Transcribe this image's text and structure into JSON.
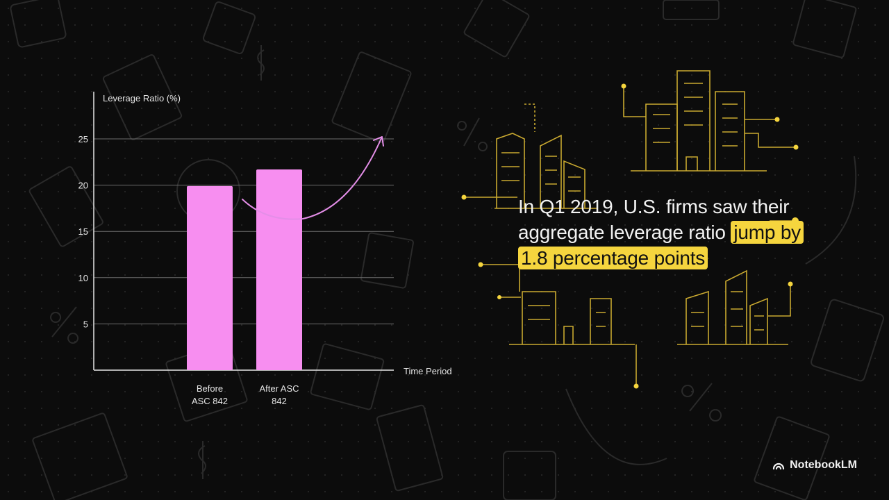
{
  "colors": {
    "background": "#0c0c0c",
    "bar": "#f78ef0",
    "trend_arrow": "#e48ee8",
    "highlight": "#f5d53e",
    "illustration": "#c9a930"
  },
  "icons": {
    "trend": "upward-trend-arrow-icon",
    "city": "city-skyline-illustration",
    "brand": "notebooklm-logo-icon"
  },
  "chart_data": {
    "type": "bar",
    "ylabel": "Leverage Ratio (%)",
    "xlabel": "Time Period",
    "categories": [
      [
        "Before",
        "ASC 842"
      ],
      [
        "After ASC",
        "842"
      ]
    ],
    "values": [
      19.9,
      21.7
    ],
    "ylim": [
      0,
      30
    ],
    "yticks": [
      5,
      10,
      15,
      20,
      25
    ],
    "grid": true
  },
  "caption": {
    "prefix": "In Q1 2019, U.S. firms saw their aggregate leverage ratio",
    "highlight": "jump by 1.8 percentage points"
  },
  "brand": {
    "name": "NotebookLM"
  }
}
